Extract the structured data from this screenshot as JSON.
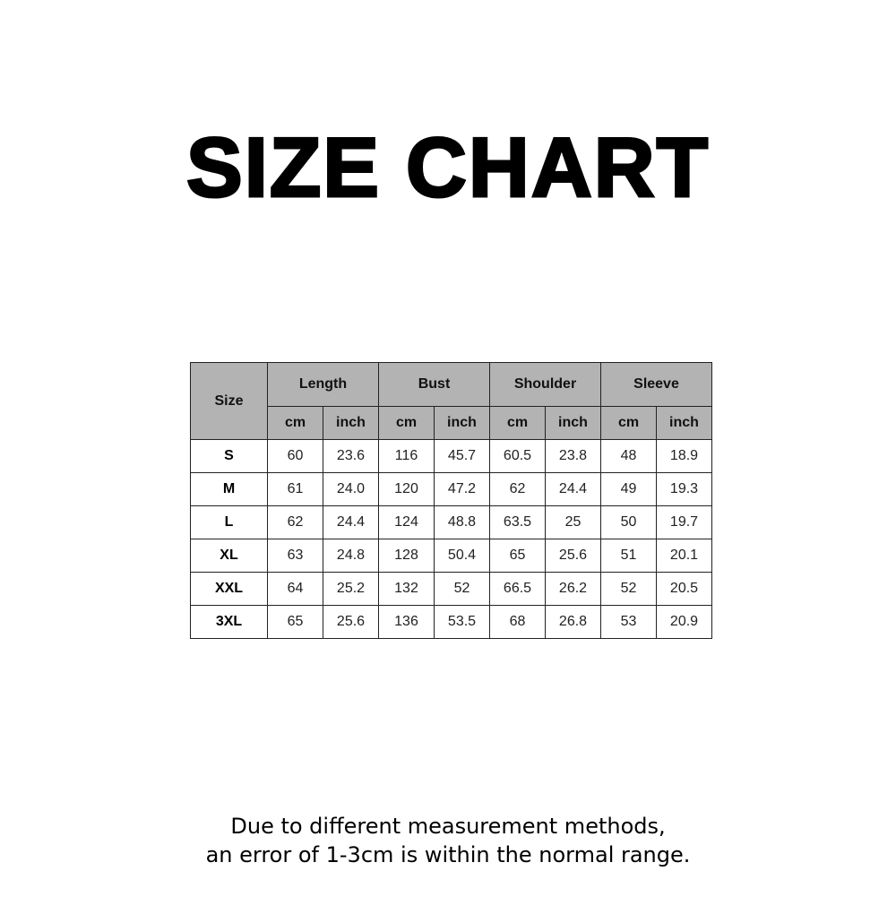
{
  "title": "SIZE CHART",
  "table": {
    "size_header": "Size",
    "groups": [
      "Length",
      "Bust",
      "Shoulder",
      "Sleeve"
    ],
    "units": [
      "cm",
      "inch"
    ],
    "rows": [
      {
        "size": "S",
        "values": [
          "60",
          "23.6",
          "116",
          "45.7",
          "60.5",
          "23.8",
          "48",
          "18.9"
        ]
      },
      {
        "size": "M",
        "values": [
          "61",
          "24.0",
          "120",
          "47.2",
          "62",
          "24.4",
          "49",
          "19.3"
        ]
      },
      {
        "size": "L",
        "values": [
          "62",
          "24.4",
          "124",
          "48.8",
          "63.5",
          "25",
          "50",
          "19.7"
        ]
      },
      {
        "size": "XL",
        "values": [
          "63",
          "24.8",
          "128",
          "50.4",
          "65",
          "25.6",
          "51",
          "20.1"
        ]
      },
      {
        "size": "XXL",
        "values": [
          "64",
          "25.2",
          "132",
          "52",
          "66.5",
          "26.2",
          "52",
          "20.5"
        ]
      },
      {
        "size": "3XL",
        "values": [
          "65",
          "25.6",
          "136",
          "53.5",
          "68",
          "26.8",
          "53",
          "20.9"
        ]
      }
    ]
  },
  "footer": {
    "line1": "Due to different measurement methods,",
    "line2": "an error of 1-3cm is within the normal range."
  },
  "colors": {
    "header_bg": "#b3b3b3",
    "border": "#222222"
  }
}
